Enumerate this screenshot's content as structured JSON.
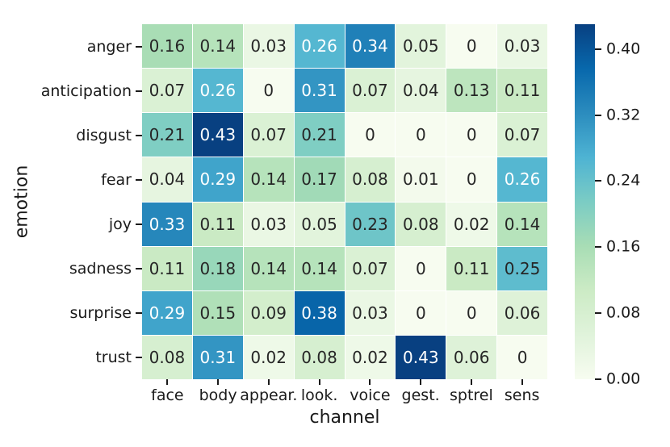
{
  "chart_data": {
    "type": "heatmap",
    "title": "",
    "xlabel": "channel",
    "ylabel": "emotion",
    "rows": [
      "anger",
      "anticipation",
      "disgust",
      "fear",
      "joy",
      "sadness",
      "surprise",
      "trust"
    ],
    "columns": [
      "face",
      "body",
      "appear.",
      "look.",
      "voice",
      "gest.",
      "sptrel",
      "sens"
    ],
    "values": [
      [
        0.16,
        0.14,
        0.03,
        0.26,
        0.34,
        0.05,
        0,
        0.03
      ],
      [
        0.07,
        0.26,
        0,
        0.31,
        0.07,
        0.04,
        0.13,
        0.11
      ],
      [
        0.21,
        0.43,
        0.07,
        0.21,
        0,
        0,
        0,
        0.07
      ],
      [
        0.04,
        0.29,
        0.14,
        0.17,
        0.08,
        0.01,
        0,
        0.26
      ],
      [
        0.33,
        0.11,
        0.03,
        0.05,
        0.23,
        0.08,
        0.02,
        0.14
      ],
      [
        0.11,
        0.18,
        0.14,
        0.14,
        0.07,
        0,
        0.11,
        0.25
      ],
      [
        0.29,
        0.15,
        0.09,
        0.38,
        0.03,
        0,
        0,
        0.06
      ],
      [
        0.08,
        0.31,
        0.02,
        0.08,
        0.02,
        0.43,
        0.06,
        0
      ]
    ],
    "vmin": 0,
    "vmax": 0.43,
    "colormap_name": "GnBu",
    "colormap_anchors": [
      "#f7fcf0",
      "#e0f3db",
      "#ccebc5",
      "#a8ddb5",
      "#7bccc4",
      "#4eb3d3",
      "#2b8cbe",
      "#0868ac",
      "#084081"
    ],
    "colorbar_ticks": [
      0.0,
      0.08,
      0.16,
      0.24,
      0.32,
      0.4
    ],
    "colorbar_tick_labels": [
      "0.00",
      "0.08",
      "0.16",
      "0.24",
      "0.32",
      "0.40"
    ],
    "annotation_dark_color": "#262626",
    "annotation_light_color": "#ffffff",
    "legend_position": "right",
    "grid": false
  }
}
